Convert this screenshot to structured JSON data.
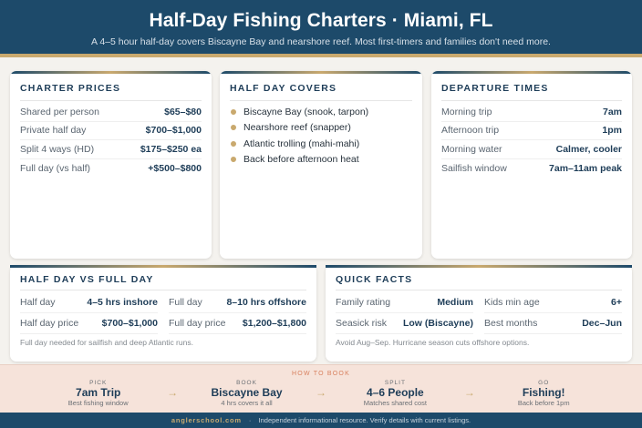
{
  "header": {
    "title": "Half-Day Fishing Charters · Miami, FL",
    "subtitle": "A 4–5 hour half-day covers Biscayne Bay and nearshore reef. Most first-timers and families don't need more."
  },
  "prices": {
    "title": "CHARTER PRICES",
    "rows": [
      {
        "k": "Shared per person",
        "v": "$65–$80"
      },
      {
        "k": "Private half day",
        "v": "$700–$1,000"
      },
      {
        "k": "Split 4 ways (HD)",
        "v": "$175–$250 ea"
      },
      {
        "k": "Full day (vs half)",
        "v": "+$500–$800"
      }
    ]
  },
  "covers": {
    "title": "HALF DAY COVERS",
    "items": [
      "Biscayne Bay (snook, tarpon)",
      "Nearshore reef (snapper)",
      "Atlantic trolling (mahi-mahi)",
      "Back before afternoon heat"
    ]
  },
  "departures": {
    "title": "DEPARTURE TIMES",
    "rows": [
      {
        "k": "Morning trip",
        "v": "7am"
      },
      {
        "k": "Afternoon trip",
        "v": "1pm"
      },
      {
        "k": "Morning water",
        "v": "Calmer, cooler"
      },
      {
        "k": "Sailfish window",
        "v": "7am–11am peak"
      }
    ]
  },
  "compare": {
    "title": "HALF DAY VS FULL DAY",
    "cells": [
      {
        "k": "Half day",
        "v": "4–5 hrs inshore"
      },
      {
        "k": "Full day",
        "v": "8–10 hrs offshore"
      },
      {
        "k": "Half day price",
        "v": "$700–$1,000"
      },
      {
        "k": "Full day price",
        "v": "$1,200–$1,800"
      }
    ],
    "note": "Full day needed for sailfish and deep Atlantic runs."
  },
  "facts": {
    "title": "QUICK FACTS",
    "cells": [
      {
        "k": "Family rating",
        "v": "Medium"
      },
      {
        "k": "Kids min age",
        "v": "6+"
      },
      {
        "k": "Seasick risk",
        "v": "Low (Biscayne)"
      },
      {
        "k": "Best months",
        "v": "Dec–Jun"
      }
    ],
    "note": "Avoid Aug–Sep. Hurricane season cuts offshore options."
  },
  "book": {
    "title": "HOW TO BOOK",
    "steps": [
      {
        "l": "PICK",
        "m": "7am Trip",
        "s": "Best fishing window"
      },
      {
        "l": "BOOK",
        "m": "Biscayne Bay",
        "s": "4 hrs covers it all"
      },
      {
        "l": "SPLIT",
        "m": "4–6 People",
        "s": "Matches shared cost"
      },
      {
        "l": "GO",
        "m": "Fishing!",
        "s": "Back before 1pm"
      }
    ],
    "arrow": "→"
  },
  "footer": {
    "brand": "anglerschool.com",
    "sep": "·",
    "text": "Independent informational resource. Verify details with current listings."
  },
  "colors": {
    "primary": "#1d4a6a",
    "accent": "#c9a96e",
    "band": "#f6e3da"
  }
}
